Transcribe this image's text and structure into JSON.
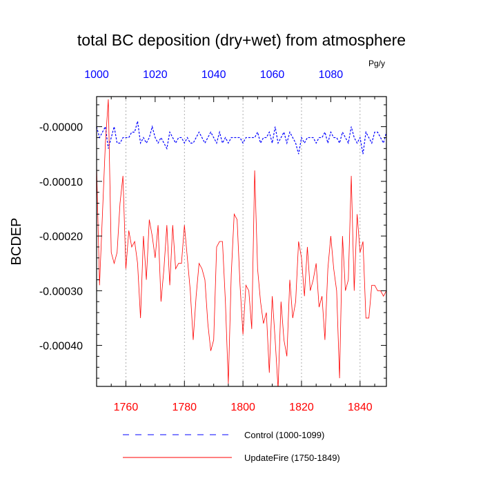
{
  "chart_data": {
    "type": "line",
    "title": "total BC deposition (dry+wet) from atmosphere",
    "ylabel": "BCDEP",
    "units": "Pg/y",
    "ylim": [
      -0.000475,
      5.5e-05
    ],
    "y_ticks": [
      0.0,
      -0.0001,
      -0.0002,
      -0.0003,
      -0.0004
    ],
    "y_tick_labels": [
      "-0.00000",
      "-0.00010",
      "-0.00020",
      "-0.00030",
      "-0.00040"
    ],
    "x_bottom": {
      "lim": [
        1750,
        1849
      ],
      "ticks": [
        1760,
        1780,
        1800,
        1820,
        1840
      ],
      "color": "#ff0000"
    },
    "x_top": {
      "lim": [
        1000,
        1099
      ],
      "ticks": [
        1000,
        1020,
        1040,
        1060,
        1080
      ],
      "color": "#0000ff"
    },
    "grid": "vertical dotted at major x ticks",
    "legend_position": "bottom",
    "series": [
      {
        "name": "Control (1000-1099)",
        "axis": "top",
        "color": "#0000ff",
        "style": "dashed",
        "x_start": 1000,
        "values": [
          -0.0,
          -2e-05,
          -1e-05,
          -0.0,
          -4e-05,
          -2e-05,
          0.0,
          -3e-05,
          -3e-05,
          -2e-05,
          -2e-05,
          -2e-05,
          -1e-05,
          -1e-05,
          1e-05,
          -3e-05,
          -2e-05,
          -3e-05,
          -2e-05,
          0.0,
          -2e-05,
          -3e-05,
          -2e-05,
          -3e-05,
          -4e-05,
          -1e-05,
          -2e-05,
          -3e-05,
          -2e-05,
          -2e-05,
          -3e-05,
          -2e-05,
          -3e-05,
          -3e-05,
          -2e-05,
          -1e-05,
          -2e-05,
          -3e-05,
          -2e-05,
          -1e-05,
          -2e-05,
          -3e-05,
          -1e-05,
          -3e-05,
          -2e-05,
          -3e-05,
          -2e-05,
          -2e-05,
          -2e-05,
          -2e-05,
          -3e-05,
          -2e-05,
          -2e-05,
          -2e-05,
          -2e-05,
          -1e-05,
          -3e-05,
          -2e-05,
          -2e-05,
          -1e-05,
          -3e-05,
          0.0,
          -3e-05,
          -2e-05,
          -1e-05,
          -3e-05,
          -1e-05,
          -2e-05,
          -3e-05,
          -5e-05,
          -2e-05,
          -3e-05,
          -2e-05,
          -2e-05,
          -2e-05,
          -3e-05,
          -2e-05,
          -2e-05,
          -1e-05,
          -3e-05,
          -1e-05,
          -2e-05,
          -2e-05,
          -3e-05,
          -1e-05,
          -2e-05,
          -3e-05,
          0.0,
          -2e-05,
          -3e-05,
          -2e-05,
          -5e-05,
          -1e-05,
          -2e-05,
          -3e-05,
          -1e-05,
          -1e-05,
          -2e-05,
          -3e-05,
          -1e-05
        ]
      },
      {
        "name": "UpdateFire (1750-1849)",
        "axis": "bottom",
        "color": "#ff0000",
        "style": "solid",
        "x_start": 1750,
        "values": [
          -7e-05,
          -0.00029,
          -0.00016,
          -3e-05,
          5e-05,
          -0.00023,
          -0.00025,
          -0.00023,
          -0.00014,
          -9e-05,
          -0.00026,
          -0.00019,
          -0.00022,
          -0.00021,
          -0.00025,
          -0.00035,
          -0.0002,
          -0.00028,
          -0.00017,
          -0.0002,
          -0.00024,
          -0.00018,
          -0.00032,
          -0.00026,
          -0.00018,
          -0.00029,
          -0.00018,
          -0.00026,
          -0.00025,
          -0.00025,
          -0.00018,
          -0.00024,
          -0.0003,
          -0.00039,
          -0.00031,
          -0.00025,
          -0.00026,
          -0.00028,
          -0.00036,
          -0.00041,
          -0.00039,
          -0.00022,
          -0.00021,
          -0.00021,
          -0.00032,
          -0.00047,
          -0.00027,
          -0.00016,
          -0.00017,
          -0.00029,
          -0.00038,
          -0.00029,
          -0.0003,
          -0.00037,
          -8e-05,
          -0.00026,
          -0.00032,
          -0.00036,
          -0.00034,
          -0.00045,
          -0.00031,
          -0.00039,
          -0.00048,
          -0.00032,
          -0.00039,
          -0.00042,
          -0.00028,
          -0.00035,
          -0.00032,
          -0.00021,
          -0.00024,
          -0.00031,
          -0.00022,
          -0.0003,
          -0.00028,
          -0.00025,
          -0.00033,
          -0.00031,
          -0.00039,
          -0.00026,
          -0.0002,
          -0.00026,
          -0.0003,
          -0.00046,
          -0.0002,
          -0.0003,
          -0.00028,
          -9e-05,
          -0.0003,
          -0.00016,
          -0.00023,
          -0.00021,
          -0.00035,
          -0.00035,
          -0.00029,
          -0.00029,
          -0.0003,
          -0.0003,
          -0.00031,
          -0.0003
        ]
      }
    ]
  }
}
